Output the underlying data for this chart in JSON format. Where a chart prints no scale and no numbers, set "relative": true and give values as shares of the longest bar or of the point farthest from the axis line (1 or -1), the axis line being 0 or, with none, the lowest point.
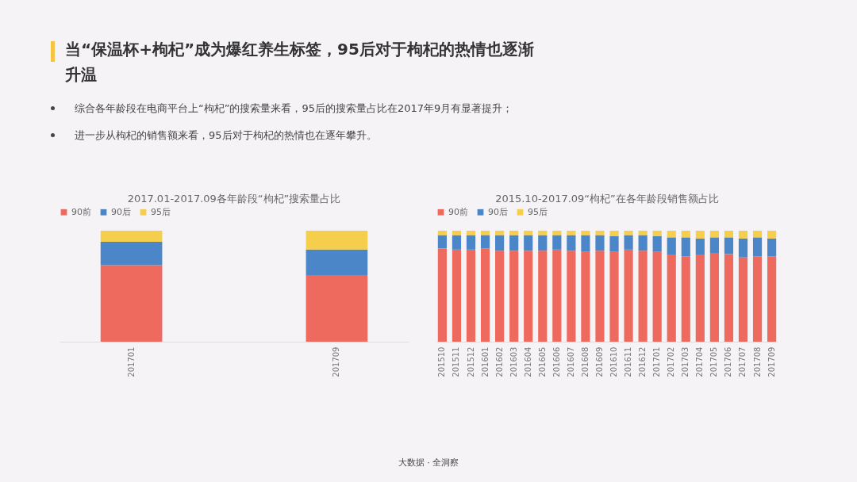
{
  "chart_data": [
    {
      "type": "other",
      "title": "当“保温杯+枸杞”成为爆红养生标签，95后对于枸杞的热情也逐渐升温",
      "annotations": [
        "综合各年龄段在电商平台上“枸杞”的搜索量来看，95后的搜索量占比在2017年9月有显著提升；",
        "进一步从枸杞的销售额来看，95后对于枸杞的热情也在逐年攀升。",
        "大数据 · 全洞察"
      ]
    },
    {
      "type": "bar",
      "title": "2017.01-2017.09各年龄段“枸杞”搜索量占比",
      "stacked": true,
      "relative": true,
      "legend": "top",
      "categories": [
        "201701",
        "201709"
      ],
      "series": [
        {
          "name": "90前",
          "color": "#ef6a5e",
          "values": [
            0.69,
            0.6
          ]
        },
        {
          "name": "90后",
          "color": "#4a86c8",
          "values": [
            0.21,
            0.23
          ]
        },
        {
          "name": "95后",
          "color": "#f5cf4b",
          "values": [
            0.1,
            0.17
          ]
        }
      ]
    },
    {
      "type": "bar",
      "title": "2015.10-2017.09“枸杞”在各年龄段销售额占比",
      "stacked": true,
      "relative": true,
      "legend": "top",
      "categories": [
        "201510",
        "201511",
        "201512",
        "201601",
        "201602",
        "201603",
        "201604",
        "201605",
        "201606",
        "201607",
        "201608",
        "201609",
        "201610",
        "201611",
        "201612",
        "201701",
        "201702",
        "201703",
        "201704",
        "201705",
        "201706",
        "201707",
        "201708",
        "201709"
      ],
      "series": [
        {
          "name": "90前",
          "color": "#ef6a5e",
          "values": [
            0.84,
            0.83,
            0.83,
            0.84,
            0.82,
            0.82,
            0.82,
            0.82,
            0.83,
            0.82,
            0.81,
            0.82,
            0.81,
            0.83,
            0.82,
            0.81,
            0.78,
            0.77,
            0.78,
            0.8,
            0.79,
            0.76,
            0.77,
            0.77
          ]
        },
        {
          "name": "90后",
          "color": "#4a86c8",
          "values": [
            0.12,
            0.13,
            0.13,
            0.12,
            0.14,
            0.14,
            0.14,
            0.14,
            0.13,
            0.14,
            0.15,
            0.14,
            0.14,
            0.13,
            0.14,
            0.14,
            0.16,
            0.17,
            0.15,
            0.14,
            0.15,
            0.17,
            0.17,
            0.16
          ]
        },
        {
          "name": "95后",
          "color": "#f5cf4b",
          "values": [
            0.04,
            0.04,
            0.04,
            0.04,
            0.04,
            0.04,
            0.04,
            0.04,
            0.04,
            0.04,
            0.04,
            0.04,
            0.05,
            0.04,
            0.04,
            0.05,
            0.06,
            0.06,
            0.07,
            0.06,
            0.06,
            0.07,
            0.06,
            0.07
          ]
        }
      ]
    }
  ]
}
